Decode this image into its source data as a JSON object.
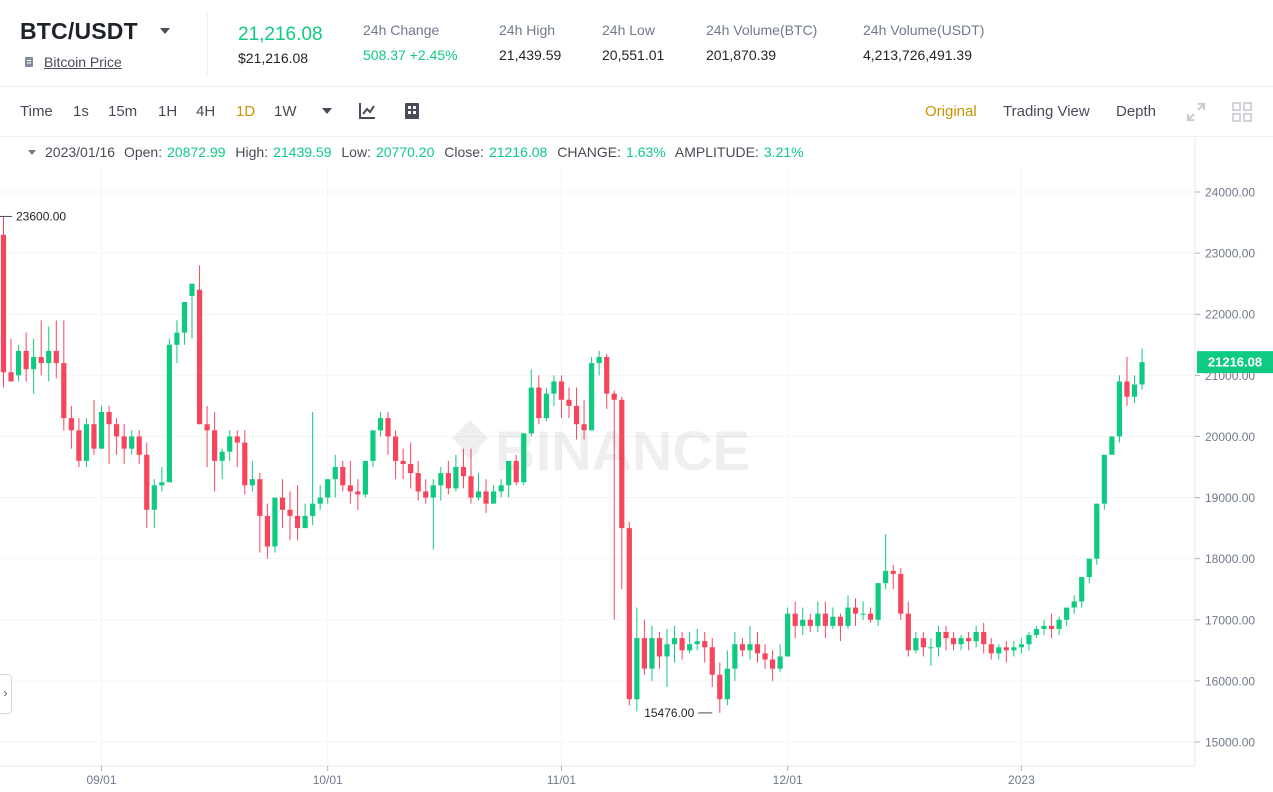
{
  "header": {
    "pair": "BTC/USDT",
    "coin_link": "Bitcoin Price",
    "last_price": "21,216.08",
    "last_price_usd": "$21,216.08",
    "stats": [
      {
        "label": "24h Change",
        "value": "508.37 +2.45%",
        "positive": true
      },
      {
        "label": "24h High",
        "value": "21,439.59"
      },
      {
        "label": "24h Low",
        "value": "20,551.01"
      },
      {
        "label": "24h Volume(BTC)",
        "value": "201,870.39"
      },
      {
        "label": "24h Volume(USDT)",
        "value": "4,213,726,491.39"
      }
    ]
  },
  "toolbar": {
    "intervals": [
      "Time",
      "1s",
      "15m",
      "1H",
      "4H",
      "1D",
      "1W"
    ],
    "active_interval": "1D",
    "views": [
      "Original",
      "Trading View",
      "Depth"
    ],
    "active_view": "Original",
    "icons": [
      "indicator-icon",
      "chart-settings-icon",
      "expand-icon",
      "layout-grid-icon"
    ]
  },
  "ohlc": {
    "date": "2023/01/16",
    "open_label": "Open:",
    "open": "20872.99",
    "high_label": "High:",
    "high": "21439.59",
    "low_label": "Low:",
    "low": "20770.20",
    "close_label": "Close:",
    "close": "21216.08",
    "change_label": "CHANGE:",
    "change": "1.63%",
    "amplitude_label": "AMPLITUDE:",
    "amplitude": "3.21%"
  },
  "watermark": "BINANCE",
  "colors": {
    "up": "#0ecb81",
    "down": "#f6465d",
    "accent": "#c99400"
  },
  "chart_data": {
    "type": "candlestick",
    "y_ticks": [
      "24000.00",
      "23000.00",
      "22000.00",
      "21000.00",
      "20000.00",
      "19000.00",
      "18000.00",
      "17000.00",
      "16000.00",
      "15000.00"
    ],
    "x_ticks": [
      {
        "label": "09/01",
        "index": 13
      },
      {
        "label": "10/01",
        "index": 43
      },
      {
        "label": "11/01",
        "index": 74
      },
      {
        "label": "12/01",
        "index": 104
      },
      {
        "label": "2023",
        "index": 135
      }
    ],
    "ylim": [
      14600,
      24600
    ],
    "current_price": "21216.08",
    "max_marker": {
      "label": "23600.00",
      "value": 23600,
      "index": 0
    },
    "min_marker": {
      "label": "15476.00",
      "value": 15476,
      "index": 94
    },
    "candles": [
      [
        23300,
        23600,
        21050,
        20800
      ],
      [
        21050,
        21600,
        20900,
        21000
      ],
      [
        21000,
        21500,
        21400,
        20900
      ],
      [
        21400,
        21700,
        21100,
        20900
      ],
      [
        21100,
        21600,
        21300,
        20700
      ],
      [
        21300,
        21900,
        21200,
        21000
      ],
      [
        21200,
        21800,
        21400,
        20900
      ],
      [
        21400,
        21900,
        21200,
        20950
      ],
      [
        21200,
        21900,
        20300,
        20100
      ],
      [
        20300,
        20500,
        20100,
        19800
      ],
      [
        20100,
        20300,
        19600,
        19500
      ],
      [
        19600,
        20300,
        20200,
        19500
      ],
      [
        20200,
        20600,
        19800,
        19700
      ],
      [
        19800,
        20500,
        20400,
        19800
      ],
      [
        20400,
        20500,
        20200,
        19550
      ],
      [
        20200,
        20300,
        20000,
        19700
      ],
      [
        20000,
        20200,
        19800,
        19550
      ],
      [
        19800,
        20100,
        20000,
        19700
      ],
      [
        20000,
        20100,
        19700,
        19550
      ],
      [
        19700,
        19900,
        18800,
        18500
      ],
      [
        18800,
        19300,
        19200,
        18500
      ],
      [
        19200,
        19500,
        19250,
        19100
      ],
      [
        19250,
        21600,
        21500,
        19250
      ],
      [
        21500,
        21900,
        21700,
        21200
      ],
      [
        21700,
        22100,
        22200,
        21500
      ],
      [
        22300,
        22400,
        22500,
        21600
      ],
      [
        22400,
        22800,
        20200,
        20200
      ],
      [
        20200,
        20500,
        20100,
        19500
      ],
      [
        20100,
        20400,
        19600,
        19100
      ],
      [
        19600,
        19800,
        19750,
        19300
      ],
      [
        19750,
        20100,
        20000,
        19600
      ],
      [
        20000,
        20100,
        19900,
        19500
      ],
      [
        19900,
        20100,
        19200,
        19050
      ],
      [
        19200,
        19600,
        19300,
        19100
      ],
      [
        19300,
        19400,
        18700,
        18100
      ],
      [
        18700,
        18900,
        18200,
        18000
      ],
      [
        18200,
        18700,
        19000,
        18100
      ],
      [
        19000,
        19300,
        18800,
        18500
      ],
      [
        18800,
        19100,
        18700,
        18300
      ],
      [
        18700,
        19200,
        18500,
        18300
      ],
      [
        18500,
        18900,
        18700,
        18500
      ],
      [
        18700,
        20400,
        18900,
        18550
      ],
      [
        18900,
        19200,
        19000,
        18800
      ],
      [
        19000,
        19300,
        19300,
        18900
      ],
      [
        19300,
        19700,
        19500,
        19000
      ],
      [
        19500,
        19600,
        19200,
        19100
      ],
      [
        19200,
        19600,
        19100,
        18900
      ],
      [
        19100,
        19300,
        19050,
        18800
      ],
      [
        19050,
        19600,
        19600,
        19000
      ],
      [
        19600,
        19700,
        20100,
        19500
      ],
      [
        20100,
        20400,
        20300,
        20000
      ],
      [
        20300,
        20400,
        20000,
        19700
      ],
      [
        20000,
        20100,
        19600,
        19300
      ],
      [
        19600,
        19800,
        19550,
        19300
      ],
      [
        19550,
        19900,
        19400,
        19150
      ],
      [
        19400,
        19600,
        19100,
        18950
      ],
      [
        19100,
        19300,
        19000,
        18900
      ],
      [
        19000,
        19300,
        19200,
        18150
      ],
      [
        19200,
        19500,
        19400,
        18950
      ],
      [
        19400,
        19600,
        19150,
        19050
      ],
      [
        19150,
        19700,
        19500,
        19100
      ],
      [
        19500,
        19800,
        19350,
        19150
      ],
      [
        19350,
        19800,
        19000,
        18900
      ],
      [
        19000,
        19400,
        19100,
        18950
      ],
      [
        19100,
        19300,
        18900,
        18750
      ],
      [
        18900,
        19200,
        19100,
        18950
      ],
      [
        19100,
        19300,
        19200,
        19000
      ],
      [
        19200,
        19500,
        19600,
        19000
      ],
      [
        19600,
        19700,
        19250,
        19200
      ],
      [
        19250,
        19600,
        20050,
        19200
      ],
      [
        20050,
        21100,
        20800,
        20000
      ],
      [
        20800,
        21000,
        20300,
        20200
      ],
      [
        20300,
        20800,
        20700,
        20250
      ],
      [
        20700,
        21000,
        20900,
        20500
      ],
      [
        20900,
        21000,
        20600,
        20300
      ],
      [
        20600,
        20800,
        20500,
        20300
      ],
      [
        20500,
        20800,
        20200,
        19950
      ],
      [
        20200,
        20600,
        20100,
        19950
      ],
      [
        20100,
        21300,
        21200,
        20100
      ],
      [
        21200,
        21400,
        21300,
        21000
      ],
      [
        21300,
        21350,
        20700,
        20450
      ],
      [
        20700,
        20750,
        20600,
        17000
      ],
      [
        20600,
        20650,
        18500,
        17500
      ],
      [
        18500,
        18600,
        15700,
        15600
      ],
      [
        15700,
        17200,
        16700,
        15500
      ],
      [
        16700,
        17000,
        16200,
        16100
      ],
      [
        16200,
        16900,
        16700,
        16000
      ],
      [
        16700,
        16800,
        16400,
        16200
      ],
      [
        16400,
        16850,
        16600,
        15900
      ],
      [
        16600,
        16900,
        16700,
        16300
      ],
      [
        16700,
        16800,
        16500,
        16350
      ],
      [
        16500,
        16800,
        16600,
        16450
      ],
      [
        16600,
        16850,
        16650,
        16500
      ],
      [
        16650,
        16800,
        16550,
        16300
      ],
      [
        16550,
        16700,
        16100,
        15900
      ],
      [
        16100,
        16300,
        15700,
        15476
      ],
      [
        15700,
        16500,
        16200,
        15600
      ],
      [
        16200,
        16800,
        16600,
        16000
      ],
      [
        16600,
        16700,
        16500,
        16400
      ],
      [
        16500,
        16900,
        16600,
        16350
      ],
      [
        16600,
        16800,
        16450,
        16300
      ],
      [
        16450,
        16600,
        16350,
        16200
      ],
      [
        16350,
        16500,
        16200,
        16000
      ],
      [
        16200,
        16600,
        16400,
        16150
      ],
      [
        16400,
        17200,
        17100,
        16400
      ],
      [
        17100,
        17300,
        16900,
        16700
      ],
      [
        16900,
        17200,
        17000,
        16750
      ],
      [
        17000,
        17100,
        16900,
        16800
      ],
      [
        16900,
        17300,
        17100,
        16800
      ],
      [
        17100,
        17300,
        16900,
        16700
      ],
      [
        16900,
        17200,
        17050,
        16850
      ],
      [
        17050,
        17100,
        16900,
        16650
      ],
      [
        16900,
        17400,
        17200,
        16850
      ],
      [
        17200,
        17350,
        17100,
        16900
      ],
      [
        17100,
        17300,
        17100,
        17000
      ],
      [
        17100,
        17200,
        17000,
        16950
      ],
      [
        17000,
        17400,
        17600,
        16900
      ],
      [
        17600,
        18400,
        17800,
        17500
      ],
      [
        17800,
        17900,
        17750,
        17500
      ],
      [
        17750,
        17850,
        17100,
        17000
      ],
      [
        17100,
        17300,
        16500,
        16400
      ],
      [
        16500,
        16800,
        16700,
        16450
      ],
      [
        16700,
        16800,
        16550,
        16400
      ],
      [
        16550,
        16700,
        16550,
        16250
      ],
      [
        16550,
        16900,
        16800,
        16400
      ],
      [
        16800,
        16900,
        16700,
        16500
      ],
      [
        16700,
        16800,
        16600,
        16500
      ],
      [
        16600,
        16750,
        16700,
        16500
      ],
      [
        16700,
        16800,
        16650,
        16500
      ],
      [
        16650,
        16900,
        16800,
        16550
      ],
      [
        16800,
        16950,
        16600,
        16450
      ],
      [
        16600,
        16700,
        16450,
        16350
      ],
      [
        16450,
        16600,
        16550,
        16350
      ],
      [
        16550,
        16650,
        16500,
        16300
      ],
      [
        16500,
        16650,
        16550,
        16400
      ],
      [
        16550,
        16700,
        16600,
        16450
      ],
      [
        16600,
        16800,
        16750,
        16500
      ],
      [
        16750,
        16900,
        16850,
        16700
      ],
      [
        16850,
        17000,
        16900,
        16750
      ],
      [
        16900,
        17100,
        16850,
        16700
      ],
      [
        16850,
        17050,
        17000,
        16750
      ],
      [
        17000,
        17200,
        17200,
        16900
      ],
      [
        17200,
        17400,
        17300,
        17100
      ],
      [
        17300,
        17500,
        17700,
        17200
      ],
      [
        17700,
        18000,
        18000,
        17600
      ],
      [
        18000,
        18900,
        18900,
        17900
      ],
      [
        18900,
        19000,
        19700,
        18800
      ],
      [
        19700,
        20000,
        20000,
        19800
      ],
      [
        20000,
        21000,
        20900,
        19900
      ],
      [
        20900,
        21300,
        20650,
        20500
      ],
      [
        20650,
        21000,
        20850,
        20550
      ],
      [
        20850,
        21439,
        21216,
        20770
      ]
    ]
  }
}
